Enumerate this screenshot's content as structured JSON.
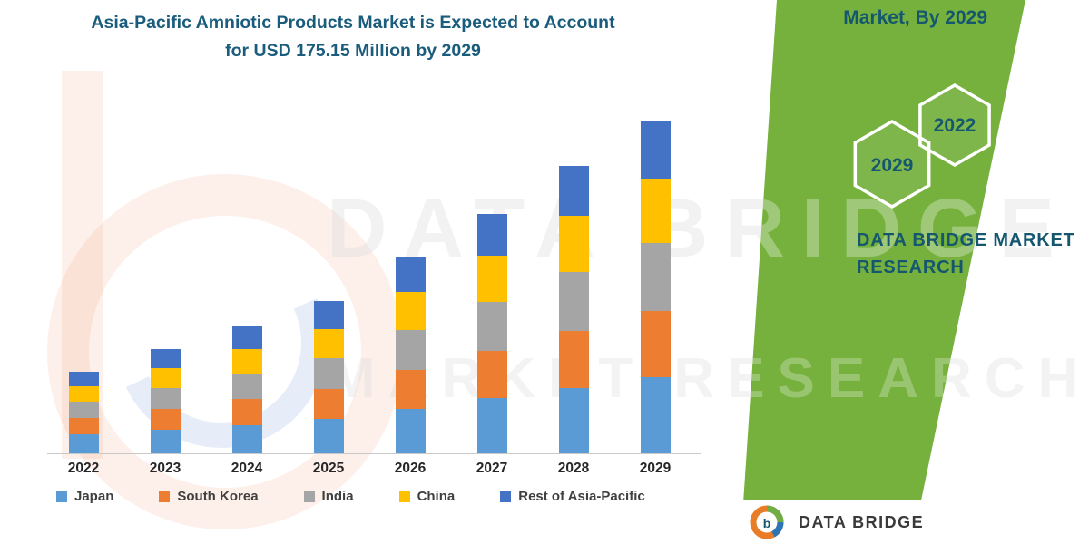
{
  "title": {
    "line1": "Asia-Pacific Amniotic Products Market is Expected to Account",
    "line2": "for USD 175.15 Million by 2029"
  },
  "side_panel": {
    "header": "Market, By 2029",
    "hex_left_year": "2029",
    "hex_right_year": "2022",
    "brand_line1": "DATA BRIDGE MARKET",
    "brand_line2": "RESEARCH"
  },
  "watermark": {
    "line1": "DATA BRIDGE",
    "line2": "MARKET RESEARCH"
  },
  "footer_logo": {
    "text": "DATA BRIDGE"
  },
  "colors": {
    "ribbon_green": "#76B13E",
    "teal_text": "#14576F",
    "title_teal": "#1A5C7C"
  },
  "chart_data": {
    "type": "bar",
    "stacked": true,
    "title": "Asia-Pacific Amniotic Products Market is Expected to Account for USD 175.15 Million by 2029",
    "categories": [
      "2022",
      "2023",
      "2024",
      "2025",
      "2026",
      "2027",
      "2028",
      "2029"
    ],
    "series": [
      {
        "name": "Japan",
        "color": "#5B9BD5",
        "values": [
          10,
          12.5,
          15,
          18,
          23.5,
          29,
          34.5,
          40
        ]
      },
      {
        "name": "South Korea",
        "color": "#ED7D31",
        "values": [
          8.5,
          11,
          13.5,
          16,
          20.5,
          25,
          30,
          35
        ]
      },
      {
        "name": "India",
        "color": "#A5A5A5",
        "values": [
          8.5,
          11,
          13.5,
          16,
          21,
          25.5,
          31,
          36
        ]
      },
      {
        "name": "China",
        "color": "#FFC000",
        "values": [
          8.5,
          10.5,
          13,
          15.5,
          20,
          24.5,
          29.5,
          33.5
        ]
      },
      {
        "name": "Rest of Asia-Pacific",
        "color": "#4472C4",
        "values": [
          7.5,
          10,
          12,
          14.5,
          18,
          22,
          26.5,
          30.65
        ]
      }
    ],
    "totals_usd_million": [
      43,
      55,
      67,
      80,
      103,
      126,
      151.5,
      175.15
    ],
    "xlabel": "",
    "ylabel": "",
    "ylim": [
      0,
      185
    ],
    "grid": false,
    "legend_position": "bottom"
  }
}
